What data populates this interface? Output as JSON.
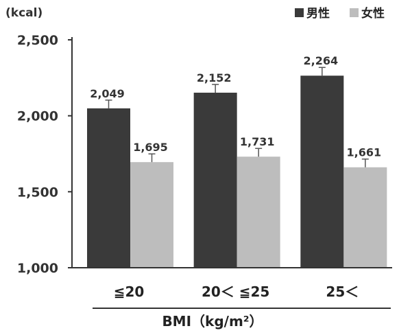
{
  "chart_data": {
    "type": "bar",
    "unit_label": "(kcal)",
    "categories": [
      "≦20",
      "20＜ ≦25",
      "25＜"
    ],
    "series": [
      {
        "name": "男性",
        "values": [
          2049,
          2152,
          2264
        ],
        "labels": [
          "2,049",
          "2,152",
          "2,264"
        ],
        "color": "#3a3a3a"
      },
      {
        "name": "女性",
        "values": [
          1695,
          1731,
          1661
        ],
        "labels": [
          "1,695",
          "1,731",
          "1,661"
        ],
        "color": "#bdbdbd"
      }
    ],
    "yticks": [
      {
        "value": 1000,
        "label": "1,000"
      },
      {
        "value": 1500,
        "label": "1,500"
      },
      {
        "value": 2000,
        "label": "2,000"
      },
      {
        "value": 2500,
        "label": "2,500"
      }
    ],
    "ylim": [
      1000,
      2500
    ],
    "xlabel": "BMI（kg/m²）",
    "legend_position": "top-right",
    "error_bars": true,
    "grid": false
  }
}
